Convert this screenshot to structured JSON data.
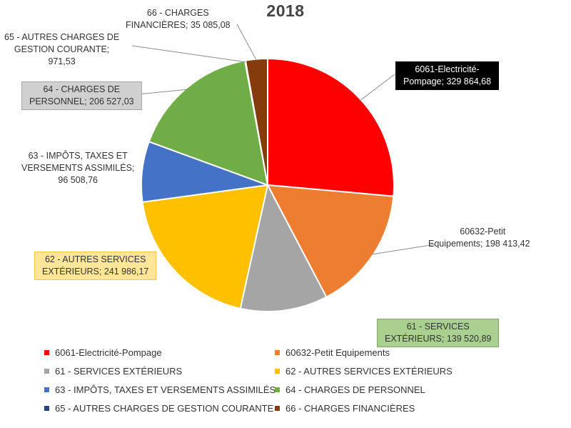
{
  "chart_data": {
    "type": "pie",
    "title": "2018",
    "slices": [
      {
        "name": "6061-Electricité-Pompage",
        "label_line1": "6061-Electricité-",
        "label_line2": "Pompage; 329 864,68",
        "value": 329864.68,
        "color": "#ff0000",
        "label_bg": "#000000",
        "label_fg": "#ffffff"
      },
      {
        "name": "60632-Petit Equipements",
        "label_line1": "60632-Petit",
        "label_line2": "Equipements; 198 413,42",
        "value": 198413.42,
        "color": "#ed7d31",
        "label_bg": "",
        "label_fg": "#333333"
      },
      {
        "name": "61 - SERVICES EXTÉRIEURS",
        "label_line1": "61 - SERVICES",
        "label_line2": "EXTÉRIEURS; 139 520,89",
        "value": 139520.89,
        "color": "#a5a5a5",
        "label_bg": "#a9d08e",
        "label_fg": "#222222"
      },
      {
        "name": "62 - AUTRES SERVICES EXTÉRIEURS",
        "label_line1": "62 - AUTRES SERVICES",
        "label_line2": "EXTÉRIEURS; 241 986,17",
        "value": 241986.17,
        "color": "#ffc000",
        "label_bg": "#ffe699",
        "label_fg": "#222222"
      },
      {
        "name": "63 - IMPÔTS, TAXES ET VERSEMENTS ASSIMILÉS",
        "label_line1": "63 - IMPÔTS, TAXES ET",
        "label_line2": "VERSEMENTS ASSIMILÉS;",
        "label_line3": "96 508,76",
        "value": 96508.76,
        "color": "#4472c4",
        "label_bg": "",
        "label_fg": "#333333"
      },
      {
        "name": "64 - CHARGES DE PERSONNEL",
        "label_line1": "64 - CHARGES DE",
        "label_line2": "PERSONNEL; 206 527,03",
        "value": 206527.03,
        "color": "#70ad47",
        "label_bg": "#d0d0d0",
        "label_fg": "#222222"
      },
      {
        "name": "65 - AUTRES CHARGES DE GESTION COURANTE",
        "label_line1": "65 - AUTRES CHARGES DE",
        "label_line2": "GESTION COURANTE;",
        "label_line3": "971,53",
        "value": 971.53,
        "color": "#264478",
        "label_bg": "",
        "label_fg": "#333333"
      },
      {
        "name": "66 - CHARGES FINANCIÈRES",
        "label_line1": "66 - CHARGES",
        "label_line2": "FINANCIÈRES; 35 085,08",
        "value": 35085.08,
        "color": "#843c0c",
        "label_bg": "",
        "label_fg": "#333333"
      }
    ],
    "legend": {
      "position": "bottom",
      "columns": 2
    }
  }
}
